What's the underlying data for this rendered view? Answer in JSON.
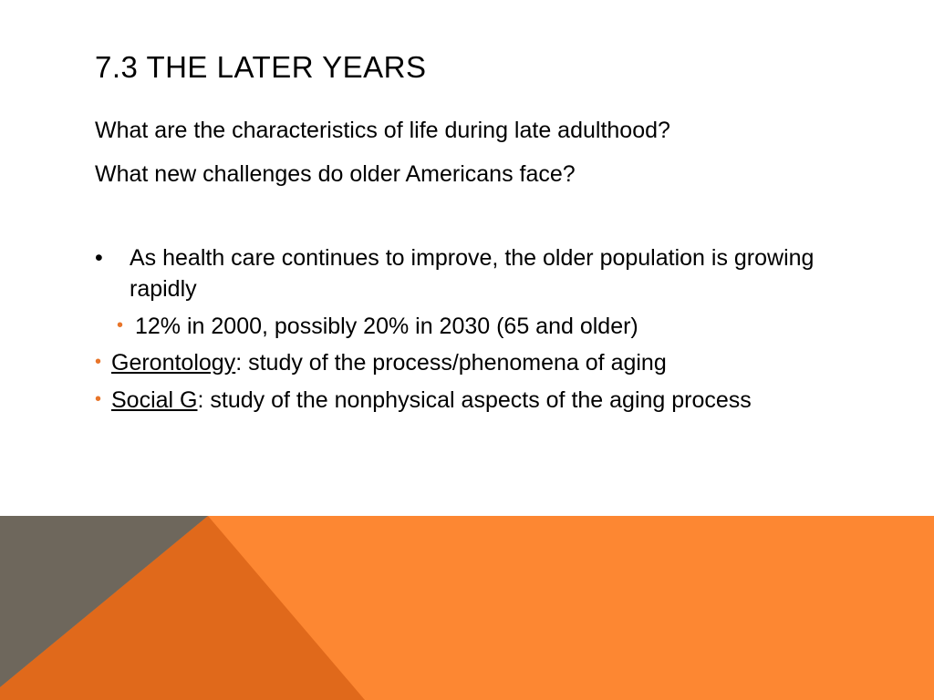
{
  "slide": {
    "title": "7.3 THE LATER YEARS",
    "questions": [
      "What are the characteristics of life during late adulthood?",
      "What new challenges do older Americans face?"
    ],
    "bullets": {
      "health_care": {
        "marker": "•",
        "text": "As health care continues to improve, the older population is growing rapidly"
      },
      "statistic": {
        "marker": "•",
        "text": "12% in 2000, possibly 20% in 2030 (65 and older)"
      },
      "gerontology": {
        "marker": "•",
        "term": "Gerontology",
        "definition": ": study of the process/phenomena of aging"
      },
      "social_g": {
        "marker": "•",
        "term": "Social G",
        "definition": ": study of the nonphysical aspects of the aging process"
      }
    },
    "colors": {
      "accent_orange": "#fd8732",
      "dark_orange": "#e0691b",
      "gray": "#6e675c",
      "bullet_orange": "#e8752a"
    }
  }
}
